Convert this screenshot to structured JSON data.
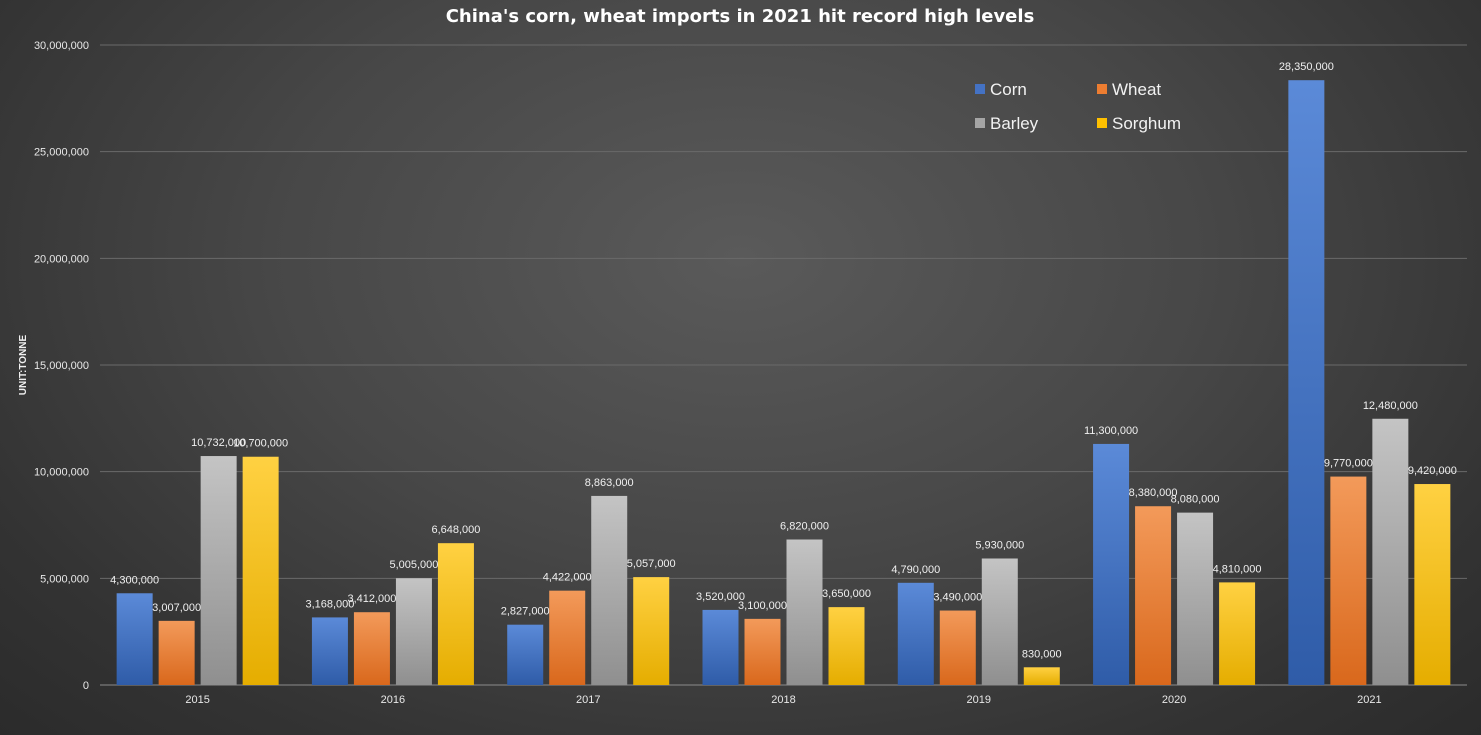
{
  "chart_data": {
    "type": "bar",
    "title": "China's corn, wheat imports in 2021 hit record high levels",
    "xlabel": "",
    "ylabel": "UNIT:TONNE",
    "categories": [
      "2015",
      "2016",
      "2017",
      "2018",
      "2019",
      "2020",
      "2021"
    ],
    "ylim": [
      0,
      30000000
    ],
    "yticks": [
      0,
      5000000,
      10000000,
      15000000,
      20000000,
      25000000,
      30000000
    ],
    "ytick_labels": [
      "0",
      "5,000,000",
      "10,000,000",
      "15,000,000",
      "20,000,000",
      "25,000,000",
      "30,000,000"
    ],
    "grid": true,
    "legend_position": "top-right",
    "series": [
      {
        "name": "Corn",
        "color": "#4472c4",
        "values": [
          4300000,
          3168000,
          2827000,
          3520000,
          4790000,
          11300000,
          28350000
        ],
        "labels": [
          "4,300,000",
          "3,168,000",
          "2,827,000",
          "3,520,000",
          "4,790,000",
          "11,300,000",
          "28,350,000"
        ]
      },
      {
        "name": "Wheat",
        "color": "#ed7d31",
        "values": [
          3007000,
          3412000,
          4422000,
          3100000,
          3490000,
          8380000,
          9770000
        ],
        "labels": [
          "3,007,000",
          "3,412,000",
          "4,422,000",
          "3,100,000",
          "3,490,000",
          "8,380,000",
          "9,770,000"
        ]
      },
      {
        "name": "Barley",
        "color": "#a5a5a5",
        "values": [
          10732000,
          5005000,
          8863000,
          6820000,
          5930000,
          8080000,
          12480000
        ],
        "labels": [
          "10,732,000",
          "5,005,000",
          "8,863,000",
          "6,820,000",
          "5,930,000",
          "8,080,000",
          "12,480,000"
        ]
      },
      {
        "name": "Sorghum",
        "color": "#ffc000",
        "values": [
          10700000,
          6648000,
          5057000,
          3650000,
          830000,
          4810000,
          9420000
        ],
        "labels": [
          "10,700,000",
          "6,648,000",
          "5,057,000",
          "3,650,000",
          "830,000",
          "4,810,000",
          "9,420,000"
        ]
      }
    ]
  }
}
